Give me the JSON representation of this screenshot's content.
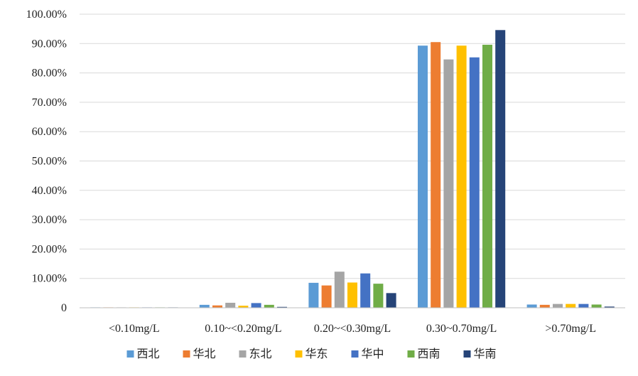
{
  "chart_data": {
    "type": "bar",
    "title": "",
    "xlabel": "",
    "ylabel": "",
    "categories": [
      "<0.10mg/L",
      "0.10~<0.20mg/L",
      "0.20~<0.30mg/L",
      "0.30~0.70mg/L",
      ">0.70mg/L"
    ],
    "ylim": [
      0,
      100
    ],
    "yticks": [
      0,
      10,
      20,
      30,
      40,
      50,
      60,
      70,
      80,
      90,
      100
    ],
    "ytick_labels": [
      "0",
      "10.00%",
      "20.00%",
      "30.00%",
      "40.00%",
      "50.00%",
      "60.00%",
      "70.00%",
      "80.00%",
      "90.00%",
      "100.00%"
    ],
    "grid": true,
    "legend_position": "bottom",
    "series": [
      {
        "name": "西北",
        "color": "#5b9bd5",
        "values": [
          0.1,
          1.0,
          8.5,
          89.3,
          1.1
        ]
      },
      {
        "name": "华北",
        "color": "#ed7d31",
        "values": [
          0.1,
          0.8,
          7.6,
          90.5,
          1.0
        ]
      },
      {
        "name": "东北",
        "color": "#a5a5a5",
        "values": [
          0.1,
          1.7,
          12.3,
          84.6,
          1.3
        ]
      },
      {
        "name": "华东",
        "color": "#ffc000",
        "values": [
          0.1,
          0.7,
          8.6,
          89.3,
          1.3
        ]
      },
      {
        "name": "华中",
        "color": "#4472c4",
        "values": [
          0.1,
          1.6,
          11.7,
          85.3,
          1.3
        ]
      },
      {
        "name": "西南",
        "color": "#70ad47",
        "values": [
          0.1,
          1.0,
          8.2,
          89.6,
          1.1
        ]
      },
      {
        "name": "华南",
        "color": "#264478",
        "values": [
          0.05,
          0.3,
          5.0,
          94.6,
          0.4
        ]
      }
    ]
  }
}
